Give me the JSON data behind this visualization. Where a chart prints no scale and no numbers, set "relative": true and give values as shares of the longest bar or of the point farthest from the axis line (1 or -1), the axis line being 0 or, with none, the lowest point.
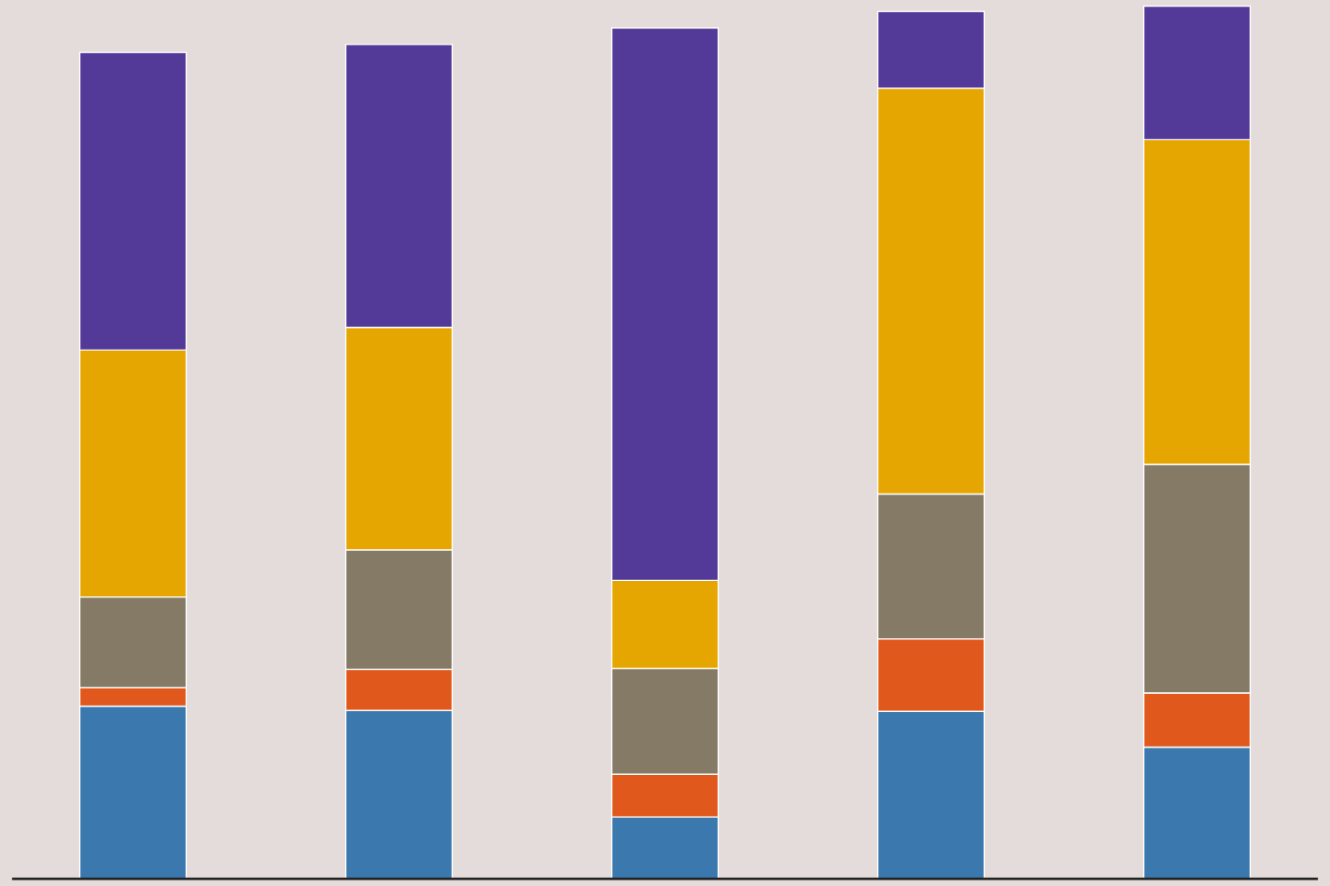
{
  "chart_data": {
    "type": "bar",
    "stacked": true,
    "relative": true,
    "categories": [
      null,
      null,
      null,
      null,
      null
    ],
    "series": [
      {
        "color": "#3a78ae",
        "values": [
          0.198,
          0.193,
          0.071,
          0.192,
          0.151
        ]
      },
      {
        "color": "#e0581c",
        "values": [
          0.021,
          0.047,
          0.049,
          0.083,
          0.062
        ]
      },
      {
        "color": "#857a66",
        "values": [
          0.104,
          0.137,
          0.121,
          0.166,
          0.262
        ]
      },
      {
        "color": "#e6a602",
        "values": [
          0.283,
          0.255,
          0.101,
          0.465,
          0.372
        ]
      },
      {
        "color": "#533a98",
        "values": [
          0.341,
          0.324,
          0.633,
          0.088,
          0.153
        ]
      }
    ]
  }
}
